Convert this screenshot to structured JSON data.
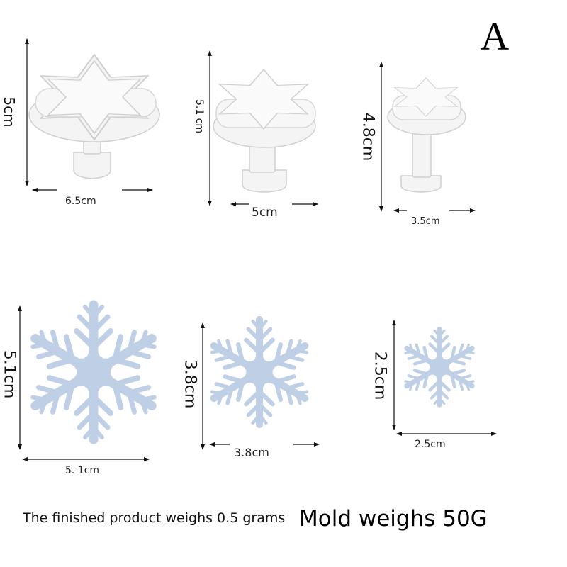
{
  "variant_letter": "A",
  "plungers": [
    {
      "height": "5cm",
      "width": "6.5cm"
    },
    {
      "height": "5.1 cm",
      "width": "5cm"
    },
    {
      "height": "4.8cm",
      "width": "3.5cm"
    }
  ],
  "snowflakes": [
    {
      "height": "5.1cm",
      "width": "5. 1cm"
    },
    {
      "height": "3.8cm",
      "width": "3.8cm"
    },
    {
      "height": "2.5cm",
      "width": "2.5cm"
    }
  ],
  "captions": {
    "product_weight": "The finished product weighs 0.5 grams",
    "mold_weight": "Mold weighs 50G"
  },
  "colors": {
    "plunger": "#f4f4f4",
    "snowflake": "#bfd0e6",
    "arrow": "#111111"
  }
}
